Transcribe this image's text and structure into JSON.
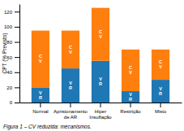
{
  "chart_data": {
    "type": "bar",
    "stacked": true,
    "categories": [
      "Normal",
      "Aprisionamento\nde AR",
      "Hiper\nInsuflação",
      "Restrição",
      "Misto"
    ],
    "series": [
      {
        "name": "V\nR",
        "values": [
          20,
          45,
          55,
          15,
          30
        ]
      },
      {
        "name": "C\nV",
        "values": [
          75,
          50,
          70,
          55,
          40
        ]
      }
    ],
    "ylabel": "CPT (% Previsto)",
    "caption": "Figura 1 – CV reduzida: mecanismos.",
    "ylim": [
      0,
      130
    ],
    "yticks": [
      0,
      20,
      40,
      60,
      80,
      100,
      120
    ]
  }
}
